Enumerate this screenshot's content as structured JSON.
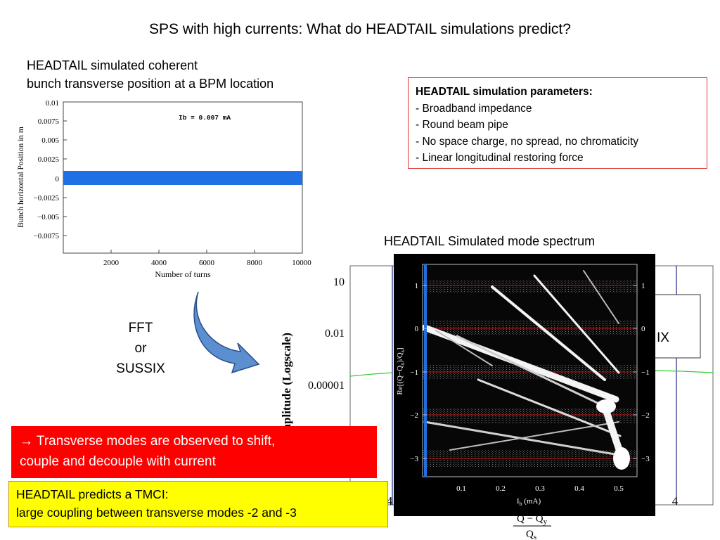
{
  "title": "SPS with high currents: What do HEADTAIL simulations predict?",
  "left_caption": {
    "line1": "HEADTAIL simulated coherent",
    "line2": "bunch transverse position at a BPM location"
  },
  "params_box": {
    "heading": "HEADTAIL simulation parameters:",
    "items": [
      "- Broadband impedance",
      "- Round beam pipe",
      "- No space charge, no spread, no chromaticity",
      "- Linear longitudinal restoring force"
    ]
  },
  "spectrum_title": "HEADTAIL Simulated mode spectrum",
  "fft_label": {
    "line1": "FFT",
    "line2": "or",
    "line3": "SUSSIX"
  },
  "red_box": {
    "arrow": "→",
    "line1": " Transverse modes are observed to shift,",
    "line2": "couple and decouple with current"
  },
  "yellow_box": {
    "line1": "HEADTAIL predicts a TMCI:",
    "line2": "large coupling between transverse modes -2 and -3"
  },
  "position_plot": {
    "annotation": "Ib  =  0.007  mA",
    "ylabel": "Bunch horizontal Position in m",
    "xlabel": "Number of turns",
    "x_ticks": [
      "2000",
      "4000",
      "6000",
      "8000",
      "10000"
    ],
    "y_ticks": [
      "0.01",
      "0.0075",
      "0.005",
      "0.0025",
      "0",
      "−0.0025",
      "−0.005",
      "−0.0075"
    ],
    "band_color": "#1f6fe5"
  },
  "amplitude_plot_partial": {
    "ylabel_visible": "m Amplitude (Logscale)",
    "y_ticks": [
      "10",
      "0.01",
      "0.00001"
    ],
    "x_tick_left": "4",
    "x_tick_right": "4",
    "frac_num": "Q − Q",
    "frac_num_sub": "y",
    "frac_den": "Q",
    "frac_den_sub": "s",
    "box_text": "IX"
  },
  "mode_plot": {
    "ylabel_main": "Re[(Q−Q",
    "ylabel_sub1": "x",
    "ylabel_mid": ")/Q",
    "ylabel_sub2": "s",
    "ylabel_end": "]",
    "xlabel_main": "I",
    "xlabel_sub": "b",
    "xlabel_end": "  (mA)",
    "x_ticks": [
      "0.1",
      "0.2",
      "0.3",
      "0.4",
      "0.5"
    ],
    "y_ticks": [
      "1",
      "0",
      "−1",
      "−2",
      "−3"
    ],
    "background": "#000000",
    "mode_line_color": "#c01010",
    "start_line_color": "#1f6fe5"
  }
}
